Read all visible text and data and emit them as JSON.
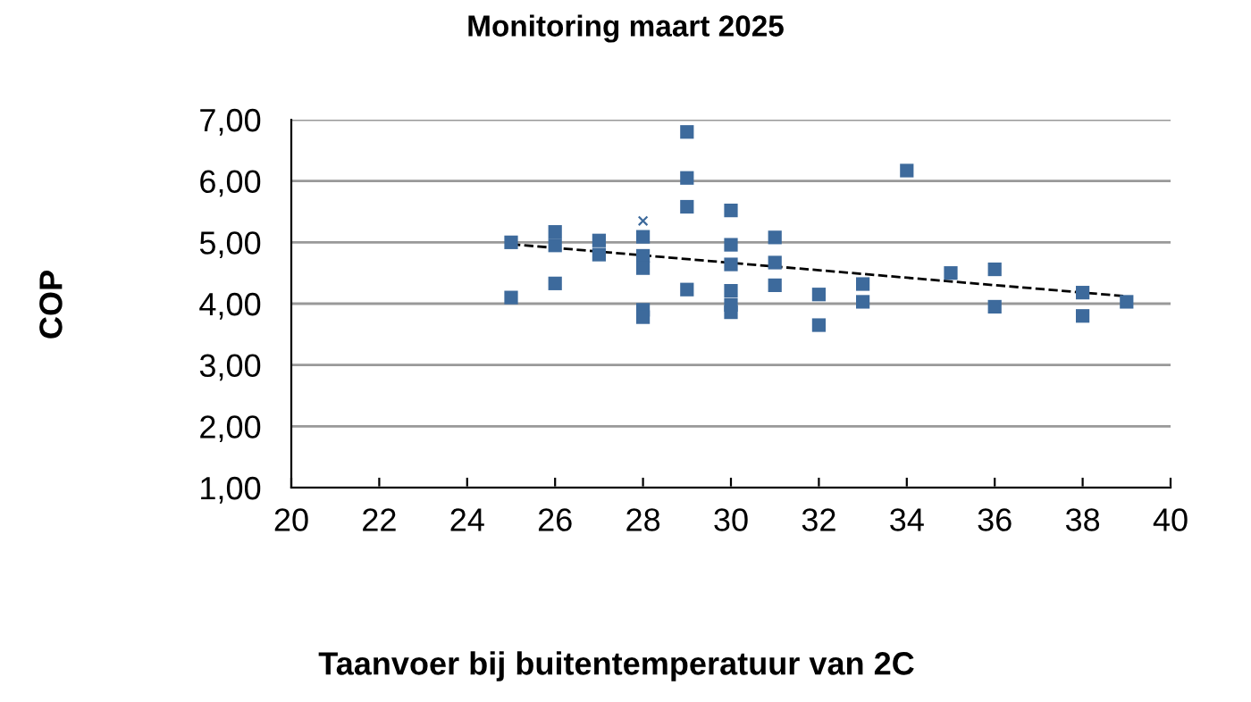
{
  "chart_data": {
    "type": "scatter",
    "title": "Monitoring maart 2025",
    "xlabel": "Taanvoer bij buitentemperatuur van 2C",
    "ylabel": "COP",
    "series": [
      {
        "color": "#3d6a9c",
        "marker": "square",
        "x": [
          25,
          25,
          26,
          26,
          26,
          27,
          27,
          28,
          28,
          28,
          28,
          28,
          29,
          29,
          29,
          29,
          30,
          30,
          30,
          30,
          30,
          30,
          31,
          31,
          31,
          32,
          32,
          33,
          33,
          34,
          35,
          36,
          36,
          38,
          38,
          39
        ],
        "values": [
          5.0,
          4.1,
          5.17,
          4.95,
          4.33,
          5.03,
          4.8,
          5.09,
          4.78,
          4.58,
          3.9,
          3.78,
          6.8,
          6.05,
          5.58,
          4.23,
          5.52,
          4.96,
          4.64,
          4.21,
          3.98,
          3.86,
          5.08,
          4.67,
          4.3,
          4.15,
          3.65,
          4.32,
          4.03,
          6.17,
          4.5,
          4.56,
          3.95,
          4.18,
          3.8,
          4.03
        ]
      },
      {
        "color": "#3d6a9c",
        "marker": "cross",
        "x": [
          28
        ],
        "values": [
          5.35
        ]
      },
      {
        "type": "line",
        "color": "#000000",
        "line_style": "dashed",
        "x": [
          25,
          39
        ],
        "values": [
          4.97,
          4.12
        ]
      }
    ],
    "xlim": [
      20,
      40
    ],
    "xticks": [
      20,
      22,
      24,
      26,
      28,
      30,
      32,
      34,
      36,
      38,
      40
    ],
    "ylim": [
      1,
      7
    ],
    "yticks": [
      {
        "value": 1,
        "label": "1,00"
      },
      {
        "value": 2,
        "label": "2,00"
      },
      {
        "value": 3,
        "label": "3,00"
      },
      {
        "value": 4,
        "label": "4,00"
      },
      {
        "value": 5,
        "label": "5,00"
      },
      {
        "value": 6,
        "label": "6,00"
      },
      {
        "value": 7,
        "label": "7,00"
      }
    ],
    "grid": "y",
    "legend": false
  }
}
